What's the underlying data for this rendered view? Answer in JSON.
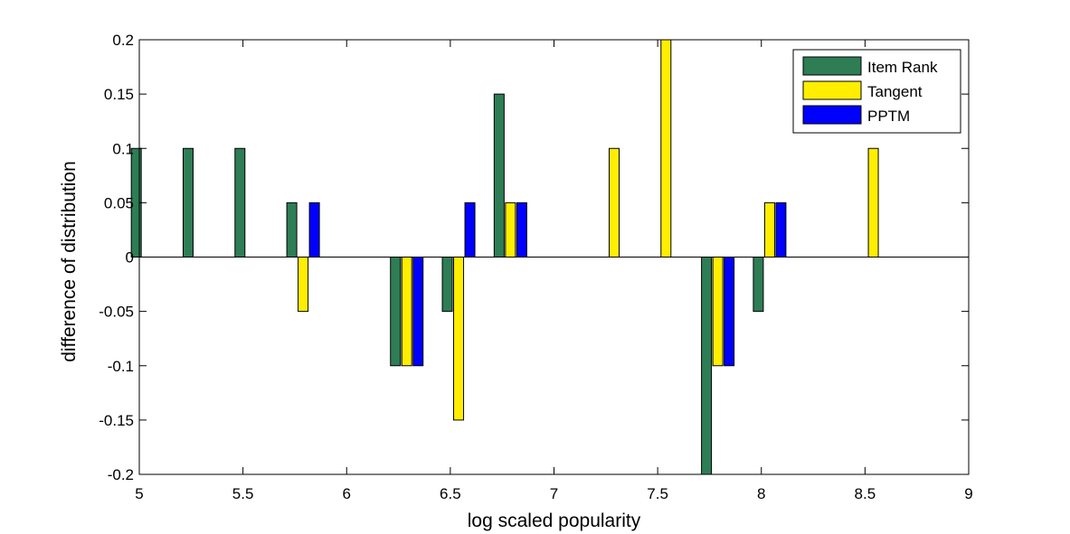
{
  "chart_data": {
    "type": "bar",
    "xlabel": "log scaled popularity",
    "ylabel": "difference of distribution",
    "xlim": [
      5,
      9
    ],
    "ylim": [
      -0.2,
      0.2
    ],
    "xticks": [
      "5",
      "5.5",
      "6",
      "6.5",
      "7",
      "7.5",
      "8",
      "8.5",
      "9"
    ],
    "yticks": [
      "0.2",
      "0.15",
      "0.1",
      "0.05",
      "0",
      "-0.05",
      "-0.1",
      "-0.15",
      "-0.2"
    ],
    "legend_position": "top-right",
    "grid": false,
    "categories": [
      5.04,
      5.29,
      5.54,
      5.79,
      6.29,
      6.54,
      6.79,
      7.29,
      7.54,
      7.79,
      8.04,
      8.54
    ],
    "series": [
      {
        "name": "Item Rank",
        "color": "#2e7d55",
        "values": [
          0.1,
          0.1,
          0.1,
          0.05,
          -0.1,
          -0.05,
          0.15,
          0,
          0,
          -0.2,
          -0.05,
          0
        ]
      },
      {
        "name": "Tangent",
        "color": "#ffee00",
        "values": [
          0,
          0,
          0,
          -0.05,
          -0.1,
          -0.15,
          0.05,
          0.1,
          0.2,
          -0.1,
          0.05,
          0.1
        ]
      },
      {
        "name": "PPTM",
        "color": "#0000ff",
        "values": [
          0,
          0,
          0,
          0.05,
          -0.1,
          0.05,
          0.05,
          0,
          0,
          -0.1,
          0.05,
          0
        ]
      }
    ]
  }
}
